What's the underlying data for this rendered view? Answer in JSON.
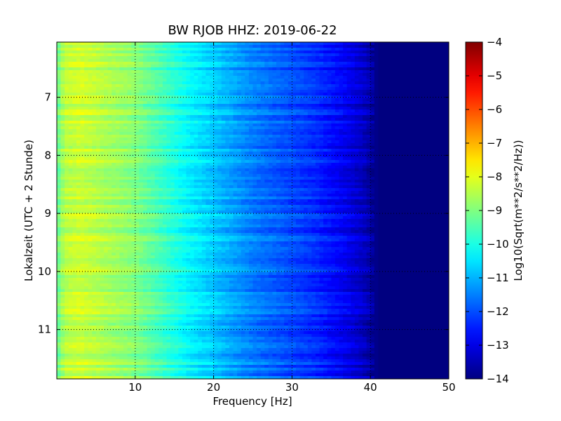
{
  "chart_data": {
    "type": "heatmap",
    "title": "BW RJOB HHZ: 2019-06-22",
    "xlabel": "Frequency [Hz]",
    "ylabel": "Lokalzeit (UTC + 2 Stunde)",
    "xlim": [
      0,
      50
    ],
    "ylim": [
      11.85,
      6.05
    ],
    "xticks": [
      10,
      20,
      30,
      40,
      50
    ],
    "yticks": [
      7,
      8,
      9,
      10,
      11
    ],
    "grid": true,
    "colormap": "jet",
    "colorbar": {
      "label": "Log10(Sqrt(m**2/s**2/Hz))",
      "range": [
        -14,
        -4
      ],
      "ticks": [
        -4,
        -5,
        -6,
        -7,
        -8,
        -9,
        -10,
        -11,
        -12,
        -13,
        -14
      ]
    },
    "frequency_profile": {
      "frequency_hz": [
        0,
        1,
        3,
        5,
        8,
        10,
        12,
        15,
        17,
        19,
        21,
        23,
        25,
        28,
        30,
        33,
        35,
        37,
        39,
        40,
        41,
        42,
        45,
        50
      ],
      "log10_amplitude": [
        -9.3,
        -8.4,
        -8.2,
        -8.4,
        -8.7,
        -8.9,
        -9.3,
        -9.9,
        -10.3,
        -10.6,
        -10.9,
        -11.2,
        -11.5,
        -11.8,
        -12.0,
        -12.3,
        -12.6,
        -12.9,
        -13.3,
        -13.6,
        -14.0,
        -14.0,
        -14.0,
        -14.0
      ]
    }
  }
}
